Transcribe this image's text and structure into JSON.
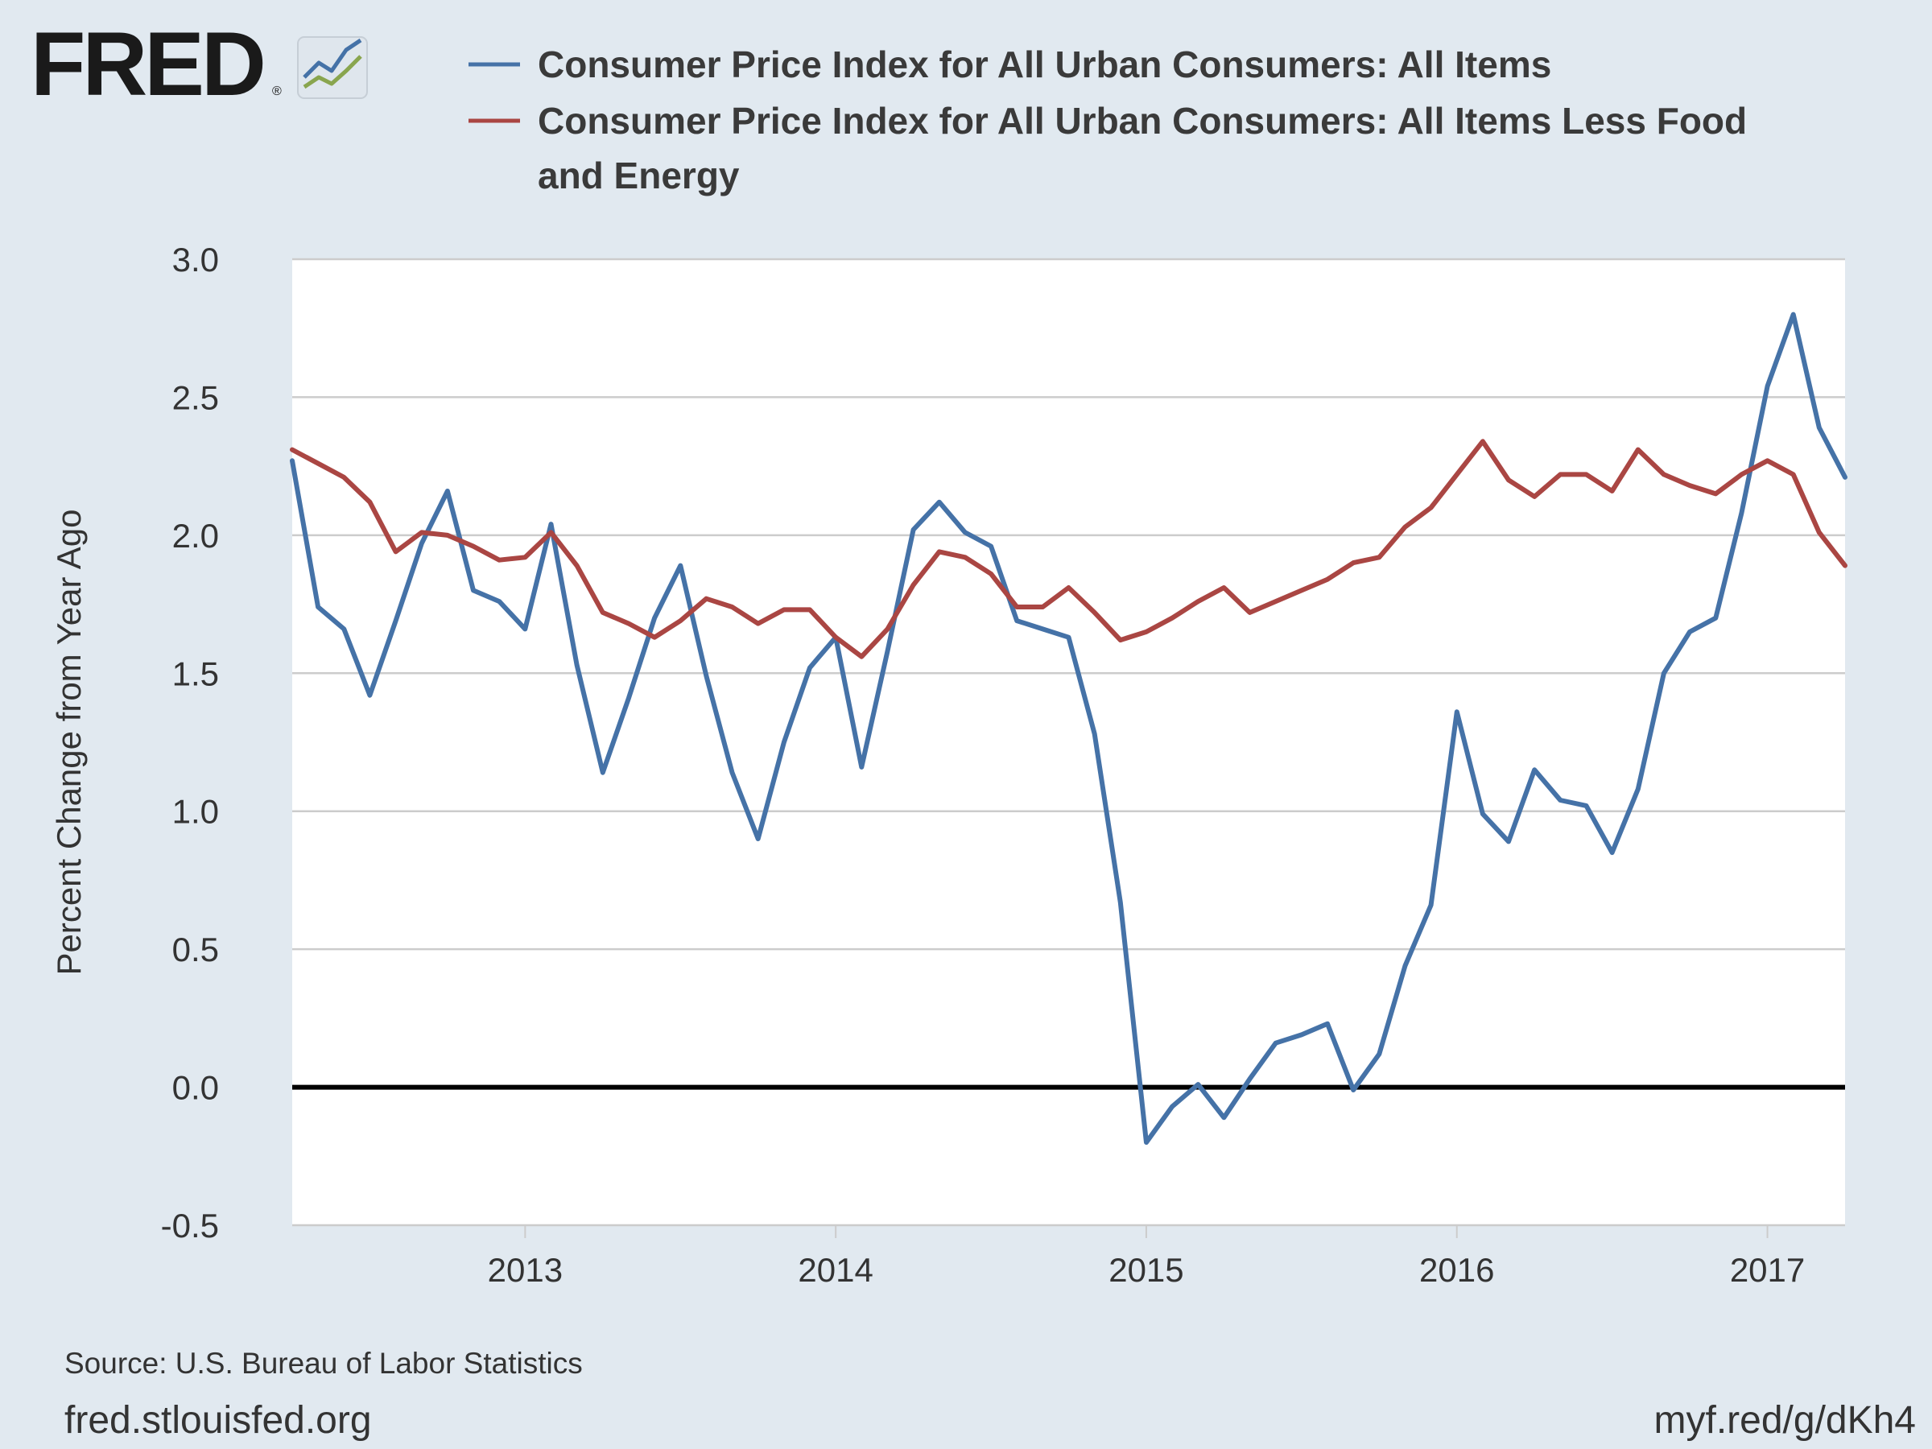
{
  "brand": {
    "logo_text": "FRED",
    "logo_icon": "chart-line-icon",
    "colors": {
      "logo_text": "#1a1a1a",
      "logo_blue": "#4572a7",
      "logo_green": "#89a54e"
    }
  },
  "footer": {
    "source": "Source: U.S. Bureau of Labor Statistics",
    "site": "fred.stlouisfed.org",
    "short_link": "myf.red/g/dKh4"
  },
  "chart_data": {
    "type": "line",
    "title": "",
    "xlabel": "",
    "ylabel": "Percent Change from Year Ago",
    "xlim": [
      "2012-04",
      "2017-04"
    ],
    "ylim": [
      -0.5,
      3.0
    ],
    "yticks": [
      -0.5,
      0.0,
      0.5,
      1.0,
      1.5,
      2.0,
      2.5,
      3.0
    ],
    "ytick_labels": [
      "-0.5",
      "0.0",
      "0.5",
      "1.0",
      "1.5",
      "2.0",
      "2.5",
      "3.0"
    ],
    "xticks": [
      "2013-01",
      "2014-01",
      "2015-01",
      "2016-01",
      "2017-01"
    ],
    "xtick_labels": [
      "2013",
      "2014",
      "2015",
      "2016",
      "2017"
    ],
    "grid": true,
    "legend_position": "top",
    "zero_line": true,
    "background_color": "#e1e9f0",
    "plot_background": "#ffffff",
    "x": [
      "2012-04",
      "2012-05",
      "2012-06",
      "2012-07",
      "2012-08",
      "2012-09",
      "2012-10",
      "2012-11",
      "2012-12",
      "2013-01",
      "2013-02",
      "2013-03",
      "2013-04",
      "2013-05",
      "2013-06",
      "2013-07",
      "2013-08",
      "2013-09",
      "2013-10",
      "2013-11",
      "2013-12",
      "2014-01",
      "2014-02",
      "2014-03",
      "2014-04",
      "2014-05",
      "2014-06",
      "2014-07",
      "2014-08",
      "2014-09",
      "2014-10",
      "2014-11",
      "2014-12",
      "2015-01",
      "2015-02",
      "2015-03",
      "2015-04",
      "2015-05",
      "2015-06",
      "2015-07",
      "2015-08",
      "2015-09",
      "2015-10",
      "2015-11",
      "2015-12",
      "2016-01",
      "2016-02",
      "2016-03",
      "2016-04",
      "2016-05",
      "2016-06",
      "2016-07",
      "2016-08",
      "2016-09",
      "2016-10",
      "2016-11",
      "2016-12",
      "2017-01",
      "2017-02",
      "2017-03",
      "2017-04"
    ],
    "series": [
      {
        "name": "Consumer Price Index for All Urban Consumers: All Items",
        "color": "#4572a7",
        "values": [
          2.27,
          1.74,
          1.66,
          1.42,
          1.69,
          1.97,
          2.16,
          1.8,
          1.76,
          1.66,
          2.04,
          1.53,
          1.14,
          1.41,
          1.7,
          1.89,
          1.49,
          1.14,
          0.9,
          1.25,
          1.52,
          1.63,
          1.16,
          1.58,
          2.02,
          2.12,
          2.01,
          1.96,
          1.69,
          1.66,
          1.63,
          1.28,
          0.67,
          -0.2,
          -0.07,
          0.01,
          -0.11,
          0.03,
          0.16,
          0.19,
          0.23,
          -0.01,
          0.12,
          0.44,
          0.66,
          1.36,
          0.99,
          0.89,
          1.15,
          1.04,
          1.02,
          0.85,
          1.08,
          1.5,
          1.65,
          1.7,
          2.08,
          2.54,
          2.8,
          2.39,
          2.21
        ]
      },
      {
        "name": "Consumer Price Index for All Urban Consumers: All Items Less Food and Energy",
        "color": "#aa4643",
        "values": [
          2.31,
          2.26,
          2.21,
          2.12,
          1.94,
          2.01,
          2.0,
          1.96,
          1.91,
          1.92,
          2.01,
          1.89,
          1.72,
          1.68,
          1.63,
          1.69,
          1.77,
          1.74,
          1.68,
          1.73,
          1.73,
          1.63,
          1.56,
          1.66,
          1.82,
          1.94,
          1.92,
          1.86,
          1.74,
          1.74,
          1.81,
          1.72,
          1.62,
          1.65,
          1.7,
          1.76,
          1.81,
          1.72,
          1.76,
          1.8,
          1.84,
          1.9,
          1.92,
          2.03,
          2.1,
          2.22,
          2.34,
          2.2,
          2.14,
          2.22,
          2.22,
          2.16,
          2.31,
          2.22,
          2.18,
          2.15,
          2.22,
          2.27,
          2.22,
          2.01,
          1.89
        ]
      }
    ]
  }
}
